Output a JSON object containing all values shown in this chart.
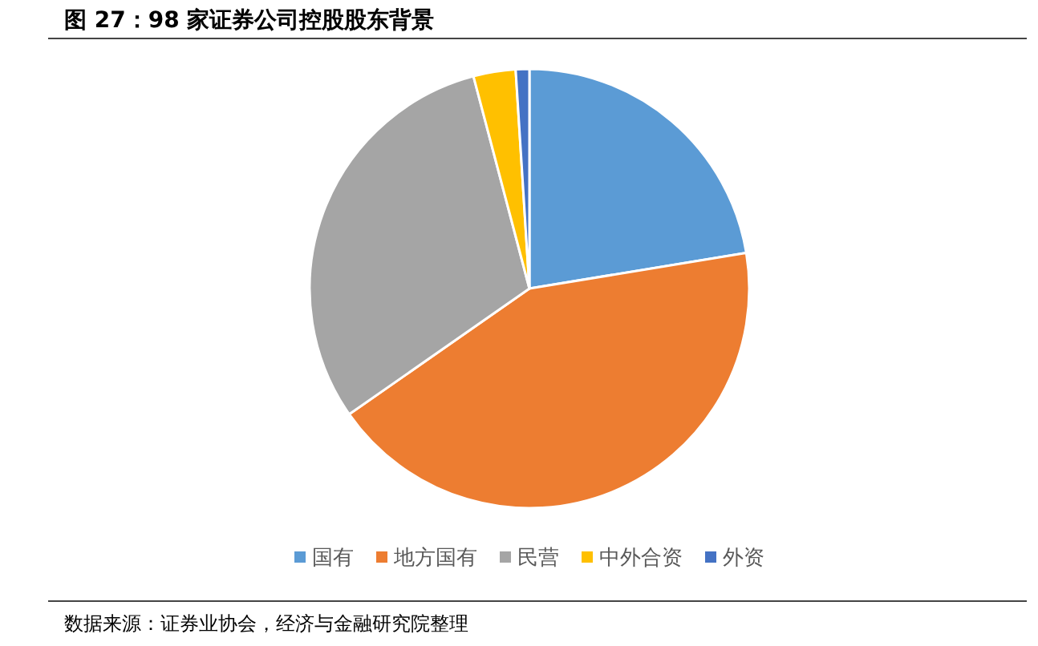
{
  "chart_data": {
    "type": "pie",
    "title": "图 27：98 家证券公司控股股东背景",
    "categories": [
      "国有",
      "地方国有",
      "民营",
      "中外合资",
      "外资"
    ],
    "values": [
      22.4,
      42.9,
      30.6,
      3.1,
      1.0
    ],
    "colors": [
      "#5b9bd5",
      "#ed7d31",
      "#a5a5a5",
      "#ffc000",
      "#4472c4"
    ],
    "legend": "bottom",
    "annotations": [
      "数据来源：证券业协会，经济与金融研究院整理"
    ]
  }
}
